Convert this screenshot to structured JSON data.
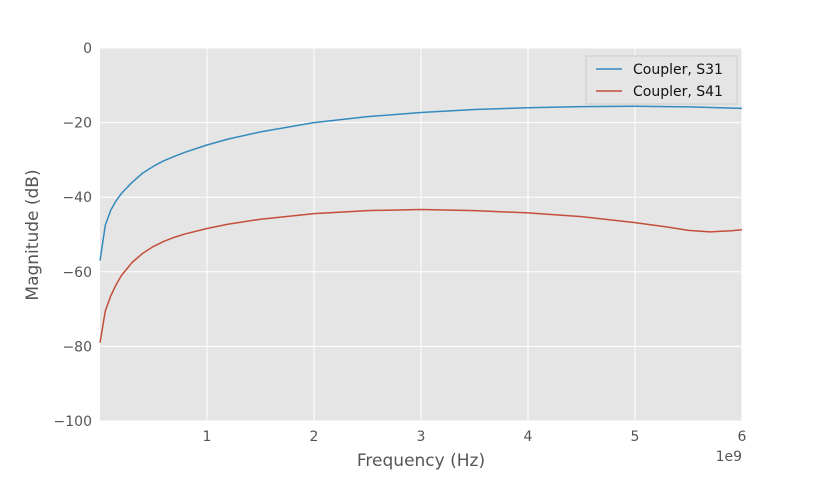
{
  "chart_data": {
    "type": "line",
    "title": "",
    "xlabel": "Frequency (Hz)",
    "ylabel": "Magnitude (dB)",
    "x_offset_label": "1e9",
    "xlim": [
      0,
      6
    ],
    "ylim": [
      -100,
      0
    ],
    "x_ticks": [
      1,
      2,
      3,
      4,
      5,
      6
    ],
    "x_tick_labels": [
      "1",
      "2",
      "3",
      "4",
      "5",
      "6"
    ],
    "y_ticks": [
      0,
      -20,
      -40,
      -60,
      -80,
      -100
    ],
    "y_tick_labels": [
      "0",
      "−20",
      "−40",
      "−60",
      "−80",
      "−100"
    ],
    "grid": true,
    "legend_position": "top-right",
    "series": [
      {
        "name": "Coupler, S31",
        "color": "#348ABD",
        "x": [
          0.0,
          0.05,
          0.1,
          0.15,
          0.2,
          0.3,
          0.4,
          0.5,
          0.6,
          0.7,
          0.8,
          1.0,
          1.2,
          1.5,
          2.0,
          2.5,
          3.0,
          3.5,
          4.0,
          4.5,
          5.0,
          5.5,
          6.0
        ],
        "y": [
          -57.0,
          -47.5,
          -43.5,
          -41.0,
          -39.0,
          -36.0,
          -33.5,
          -31.7,
          -30.2,
          -29.0,
          -27.9,
          -26.0,
          -24.4,
          -22.5,
          -20.0,
          -18.4,
          -17.3,
          -16.5,
          -16.0,
          -15.7,
          -15.6,
          -15.8,
          -16.2
        ]
      },
      {
        "name": "Coupler, S41",
        "color": "#C44E3B",
        "x": [
          0.0,
          0.05,
          0.1,
          0.15,
          0.2,
          0.3,
          0.4,
          0.5,
          0.6,
          0.7,
          0.8,
          1.0,
          1.2,
          1.5,
          2.0,
          2.5,
          3.0,
          3.5,
          4.0,
          4.5,
          5.0,
          5.3,
          5.5,
          5.7,
          5.9,
          6.0
        ],
        "y": [
          -79.0,
          -70.5,
          -66.5,
          -63.5,
          -61.0,
          -57.5,
          -55.0,
          -53.2,
          -51.8,
          -50.7,
          -49.8,
          -48.4,
          -47.2,
          -45.9,
          -44.4,
          -43.6,
          -43.3,
          -43.6,
          -44.2,
          -45.2,
          -46.8,
          -48.0,
          -48.9,
          -49.3,
          -49.0,
          -48.7
        ]
      }
    ]
  }
}
